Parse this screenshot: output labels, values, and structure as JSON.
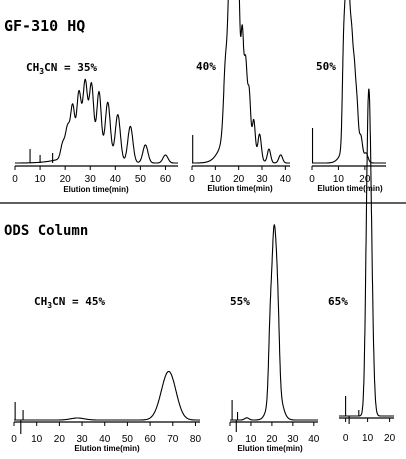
{
  "sections": [
    {
      "title": "GF-310 HQ"
    },
    {
      "title": "ODS Column"
    }
  ],
  "chart_data": [
    {
      "type": "line",
      "section": 0,
      "condition": "CH3CN = 35%",
      "condition_parts": [
        "CH",
        "3",
        "CN = 35%"
      ],
      "xlabel": "Elution time(min)",
      "xlim": [
        0,
        65
      ],
      "xticks": [
        0,
        10,
        20,
        30,
        40,
        50,
        60
      ],
      "baseline_noise": [
        [
          6,
          14
        ],
        [
          10,
          8
        ],
        [
          15,
          10
        ]
      ],
      "peaks": [
        [
          19,
          14,
          0.8
        ],
        [
          21,
          30,
          0.9
        ],
        [
          23,
          48,
          0.8
        ],
        [
          25.5,
          62,
          0.9
        ],
        [
          28,
          72,
          0.9
        ],
        [
          30.5,
          70,
          0.9
        ],
        [
          33.5,
          64,
          0.9
        ],
        [
          37,
          56,
          1.0
        ],
        [
          41,
          46,
          1.0
        ],
        [
          46,
          36,
          1.0
        ],
        [
          52,
          18,
          1.0
        ],
        [
          60,
          8,
          1.0
        ]
      ],
      "hump": [
        28,
        9,
        8
      ]
    },
    {
      "type": "line",
      "section": 0,
      "condition": "40%",
      "xlabel": "Elution time(min)",
      "xlim": [
        0,
        42
      ],
      "xticks": [
        0,
        10,
        20,
        30,
        40
      ],
      "baseline_noise": [
        [
          0.3,
          28
        ]
      ],
      "peaks": [
        [
          14.5,
          55,
          0.9
        ],
        [
          16,
          85,
          0.6
        ],
        [
          17,
          100,
          0.5
        ],
        [
          18,
          92,
          0.5
        ],
        [
          19,
          78,
          0.5
        ],
        [
          20,
          88,
          0.5
        ],
        [
          21.5,
          65,
          0.6
        ],
        [
          23,
          48,
          0.6
        ],
        [
          24.5,
          35,
          0.6
        ],
        [
          26.5,
          22,
          0.6
        ],
        [
          29,
          18,
          0.7
        ],
        [
          33,
          10,
          0.7
        ],
        [
          38,
          6,
          0.8
        ]
      ],
      "hump": [
        19,
        40,
        4.5
      ]
    },
    {
      "type": "line",
      "section": 0,
      "condition": "50%",
      "xlabel": "Elution time(min)",
      "xlim": [
        0,
        28
      ],
      "xticks": [
        0,
        10,
        20
      ],
      "baseline_noise": [
        [
          0.2,
          35
        ]
      ],
      "peaks": [
        [
          12,
          72,
          0.5
        ],
        [
          13,
          98,
          0.5
        ],
        [
          14,
          84,
          0.5
        ],
        [
          15,
          62,
          0.5
        ],
        [
          16,
          46,
          0.5
        ],
        [
          17,
          30,
          0.5
        ],
        [
          18.5,
          14,
          0.6
        ],
        [
          20.5,
          6,
          0.7
        ]
      ],
      "hump": [
        14.5,
        20,
        2.5
      ]
    },
    {
      "type": "line",
      "section": 1,
      "condition": "CH3CN = 45%",
      "condition_parts": [
        "CH",
        "3",
        "CN = 45%"
      ],
      "xlabel": "Elution time(min)",
      "xlim": [
        0,
        82
      ],
      "xticks": [
        0,
        10,
        20,
        30,
        40,
        50,
        60,
        70,
        80
      ],
      "baseline_noise": [
        [
          0.5,
          18
        ],
        [
          3,
          -14
        ],
        [
          4,
          10
        ]
      ],
      "peaks": [
        [
          28,
          2,
          3
        ],
        [
          67.5,
          28,
          3.2
        ],
        [
          69,
          22,
          3
        ]
      ],
      "hump": [
        68,
        0,
        1
      ]
    },
    {
      "type": "line",
      "section": 1,
      "condition": "55%",
      "xlabel": "Elution time(min)",
      "xlim": [
        0,
        42
      ],
      "xticks": [
        0,
        10,
        20,
        30,
        40
      ],
      "baseline_noise": [
        [
          1,
          20
        ],
        [
          3,
          -12
        ],
        [
          3.6,
          8
        ]
      ],
      "peaks": [
        [
          20,
          60,
          0.8
        ],
        [
          21,
          82,
          0.7
        ],
        [
          22,
          68,
          0.7
        ],
        [
          23,
          50,
          0.7
        ],
        [
          19,
          40,
          0.7
        ],
        [
          8,
          2,
          1
        ]
      ],
      "hump": [
        21.5,
        42,
        2.5
      ]
    },
    {
      "type": "line",
      "section": 1,
      "condition": "65%",
      "xlabel": "",
      "xlim": [
        -3,
        22
      ],
      "xticks": [
        0,
        10,
        20
      ],
      "baseline_noise": [
        [
          0,
          20
        ],
        [
          1.6,
          -8
        ],
        [
          6,
          6
        ]
      ],
      "peaks": [
        [
          10.5,
          100,
          0.9
        ],
        [
          11.5,
          60,
          1.0
        ],
        [
          9.6,
          40,
          0.8
        ]
      ],
      "hump": [
        10.8,
        10,
        1.4
      ]
    }
  ]
}
